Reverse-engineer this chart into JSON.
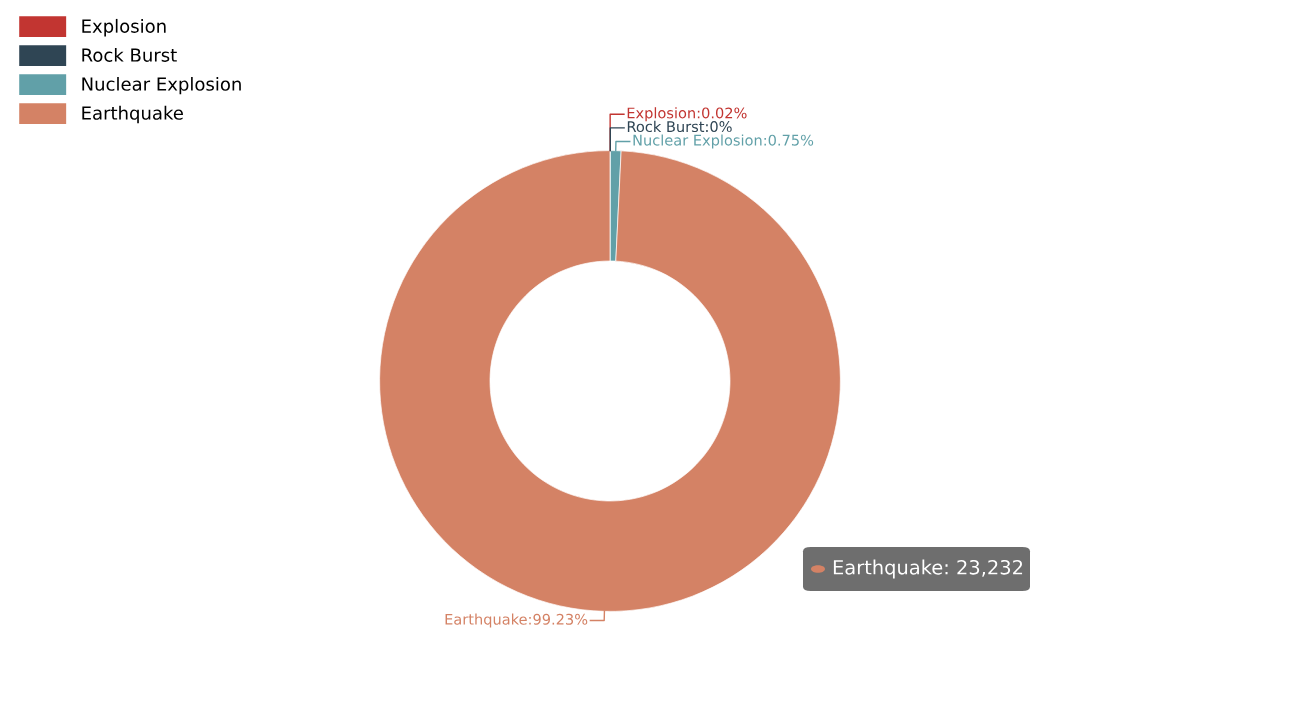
{
  "chart_data": {
    "type": "donut",
    "categories": [
      "Explosion",
      "Rock Burst",
      "Nuclear Explosion",
      "Earthquake"
    ],
    "values": [
      0.02,
      0,
      0.75,
      99.23
    ],
    "colors": [
      "#c23531",
      "#2f4554",
      "#61a0a8",
      "#d48265"
    ],
    "value_labels": [
      "Explosion:0.02%",
      "Rock Burst:0%",
      "Nuclear Explosion:0.75%",
      "Earthquake:99.23%"
    ],
    "annotations": [
      "Earthquake: 23,232"
    ],
    "legend": "top left"
  }
}
